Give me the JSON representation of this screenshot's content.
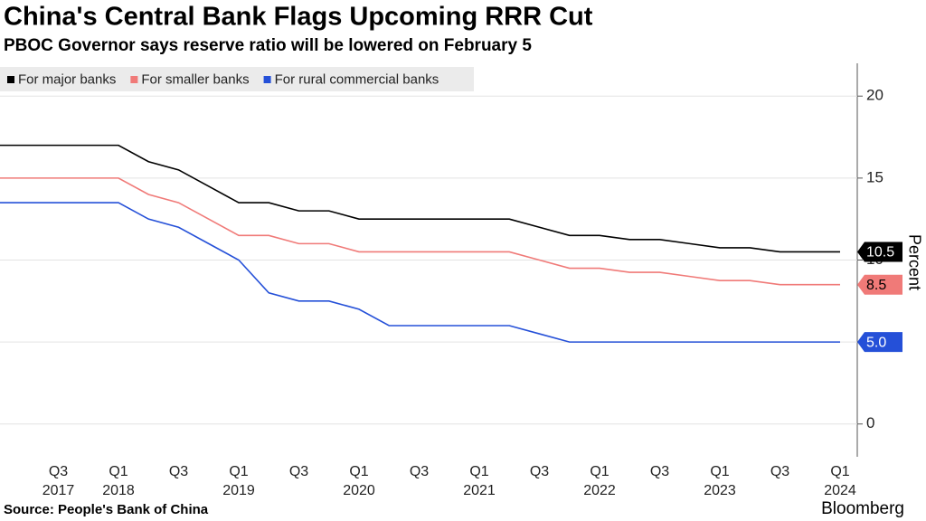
{
  "chart_data": {
    "type": "line",
    "title": "China's Central Bank Flags Upcoming RRR Cut",
    "subtitle": "PBOC Governor says reserve ratio will be lowered on February 5",
    "y_label": "Percent",
    "source": "Source: People's Bank of China",
    "brand": "Bloomberg",
    "categories": [
      null,
      null,
      "Q3",
      null,
      "Q1",
      null,
      "Q3",
      null,
      "Q1",
      null,
      "Q3",
      null,
      "Q1",
      null,
      "Q3",
      null,
      "Q1",
      null,
      "Q3",
      null,
      "Q1",
      null,
      "Q3",
      null,
      "Q1",
      null,
      "Q3",
      null,
      "Q1"
    ],
    "category_years": [
      null,
      null,
      "2017",
      null,
      "2018",
      null,
      null,
      null,
      "2019",
      null,
      null,
      null,
      "2020",
      null,
      null,
      null,
      "2021",
      null,
      null,
      null,
      "2022",
      null,
      null,
      null,
      "2023",
      null,
      null,
      null,
      "2024"
    ],
    "series": [
      {
        "name": "For major banks",
        "color": "#000000",
        "label_text_color": "#ffffff",
        "values": [
          17,
          17,
          17,
          17,
          17,
          16,
          15.5,
          14.5,
          13.5,
          13.5,
          13,
          13,
          12.5,
          12.5,
          12.5,
          12.5,
          12.5,
          12.5,
          12,
          11.5,
          11.5,
          11.25,
          11.25,
          11,
          10.75,
          10.75,
          10.5,
          10.5,
          10.5
        ],
        "value_labels": [
          null,
          null,
          null,
          null,
          null,
          null,
          null,
          null,
          null,
          null,
          null,
          null,
          null,
          null,
          null,
          null,
          null,
          null,
          null,
          null,
          null,
          null,
          null,
          null,
          null,
          null,
          null,
          null,
          "10.5"
        ]
      },
      {
        "name": "For smaller banks",
        "color": "#f07a78",
        "label_text_color": "#000000",
        "values": [
          15,
          15,
          15,
          15,
          15,
          14,
          13.5,
          12.5,
          11.5,
          11.5,
          11,
          11,
          10.5,
          10.5,
          10.5,
          10.5,
          10.5,
          10.5,
          10,
          9.5,
          9.5,
          9.25,
          9.25,
          9,
          8.75,
          8.75,
          8.5,
          8.5,
          8.5
        ],
        "value_labels": [
          null,
          null,
          null,
          null,
          null,
          null,
          null,
          null,
          null,
          null,
          null,
          null,
          null,
          null,
          null,
          null,
          null,
          null,
          null,
          null,
          null,
          null,
          null,
          null,
          null,
          null,
          null,
          null,
          "8.5"
        ]
      },
      {
        "name": "For rural commercial banks",
        "color": "#2550d8",
        "label_text_color": "#ffffff",
        "values": [
          13.5,
          13.5,
          13.5,
          13.5,
          13.5,
          12.5,
          12,
          11,
          10,
          8,
          7.5,
          7.5,
          7,
          6,
          6,
          6,
          6,
          6,
          5.5,
          5,
          5,
          5,
          5,
          5,
          5,
          5,
          5,
          5,
          5
        ],
        "value_labels": [
          null,
          null,
          null,
          null,
          null,
          null,
          null,
          null,
          null,
          null,
          null,
          null,
          null,
          null,
          null,
          null,
          null,
          null,
          null,
          null,
          null,
          null,
          null,
          null,
          null,
          null,
          null,
          null,
          "5.0"
        ]
      }
    ],
    "ylim": [
      -2,
      22
    ],
    "yticks": [
      0,
      5,
      10,
      15,
      20
    ],
    "grid": true
  }
}
